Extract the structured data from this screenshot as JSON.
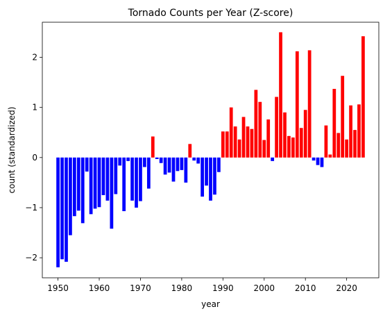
{
  "chart_data": {
    "type": "bar",
    "title": "Tornado Counts per Year (Z-score)",
    "xlabel": "year",
    "ylabel": "count (standardized)",
    "xlim": [
      1946.2,
      2027.8
    ],
    "ylim": [
      -2.4,
      2.7
    ],
    "xticks": [
      1950,
      1960,
      1970,
      1980,
      1990,
      2000,
      2010,
      2020
    ],
    "yticks": [
      -2,
      -1,
      0,
      1,
      2
    ],
    "grid": false,
    "legend": "none",
    "colors": {
      "negative": "#0000ff",
      "positive": "#ff0000"
    },
    "x": [
      1950,
      1951,
      1952,
      1953,
      1954,
      1955,
      1956,
      1957,
      1958,
      1959,
      1960,
      1961,
      1962,
      1963,
      1964,
      1965,
      1966,
      1967,
      1968,
      1969,
      1970,
      1971,
      1972,
      1973,
      1974,
      1975,
      1976,
      1977,
      1978,
      1979,
      1980,
      1981,
      1982,
      1983,
      1984,
      1985,
      1986,
      1987,
      1988,
      1989,
      1990,
      1991,
      1992,
      1993,
      1994,
      1995,
      1996,
      1997,
      1998,
      1999,
      2000,
      2001,
      2002,
      2003,
      2004,
      2005,
      2006,
      2007,
      2008,
      2009,
      2010,
      2011,
      2012,
      2013,
      2014,
      2015,
      2016,
      2017,
      2018,
      2019,
      2020,
      2021,
      2022,
      2023,
      2024
    ],
    "values": [
      -2.19,
      -2.03,
      -2.08,
      -1.55,
      -1.17,
      -1.06,
      -1.31,
      -0.28,
      -1.13,
      -1.02,
      -0.99,
      -0.75,
      -0.86,
      -1.42,
      -0.73,
      -0.16,
      -1.07,
      -0.07,
      -0.86,
      -1.0,
      -0.87,
      -0.19,
      -0.62,
      0.42,
      -0.03,
      -0.11,
      -0.34,
      -0.3,
      -0.48,
      -0.27,
      -0.25,
      -0.5,
      0.27,
      -0.06,
      -0.12,
      -0.78,
      -0.56,
      -0.86,
      -0.74,
      -0.29,
      0.52,
      0.52,
      1.0,
      0.62,
      0.36,
      0.81,
      0.62,
      0.57,
      1.35,
      1.11,
      0.35,
      0.76,
      -0.07,
      1.21,
      2.5,
      0.9,
      0.43,
      0.4,
      2.12,
      0.59,
      0.95,
      2.14,
      -0.06,
      -0.15,
      -0.19,
      0.64,
      0.06,
      1.37,
      0.49,
      1.63,
      0.36,
      1.04,
      0.55,
      1.06,
      2.42
    ]
  }
}
